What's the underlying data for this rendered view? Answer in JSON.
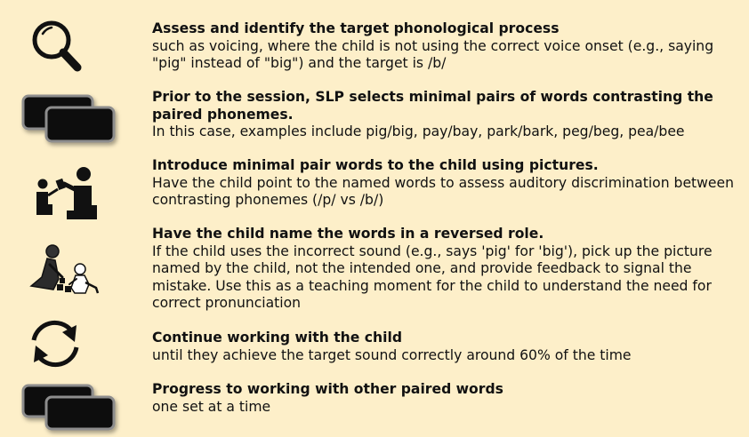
{
  "steps": [
    {
      "icon": "magnifying-glass-icon",
      "title": "Assess and identify the target phonological process",
      "description": "such as voicing, where the child is not using the correct voice onset (e.g., saying \"pig\" instead of \"big\") and the target is /b/"
    },
    {
      "icon": "cards-icon",
      "title": "Prior to the session, SLP selects minimal pairs of words contrasting the paired phonemes.",
      "description": "In this case, examples include pig/big, pay/bay, park/bark, peg/beg, pea/bee"
    },
    {
      "icon": "adult-child-pointing-icon",
      "title": "Introduce minimal pair words to the child using pictures.",
      "description": "Have the child point to the named words to assess auditory discrimination between contrasting phonemes (/p/ vs /b/)"
    },
    {
      "icon": "adult-child-playing-blocks-icon",
      "title": "Have the child name the words in a reversed role.",
      "description": "If the child uses the incorrect sound (e.g., says 'pig' for 'big'), pick up the picture named by the child, not the intended one, and provide feedback to signal the mistake. Use this as a teaching moment for the child to understand the need for correct pronunciation"
    },
    {
      "icon": "refresh-cycle-icon",
      "title": "Continue working with the child",
      "description": "until they achieve the target sound correctly around 60% of the time"
    },
    {
      "icon": "cards-icon",
      "title": "Progress to working with other paired words",
      "description": "one set at a time"
    }
  ]
}
